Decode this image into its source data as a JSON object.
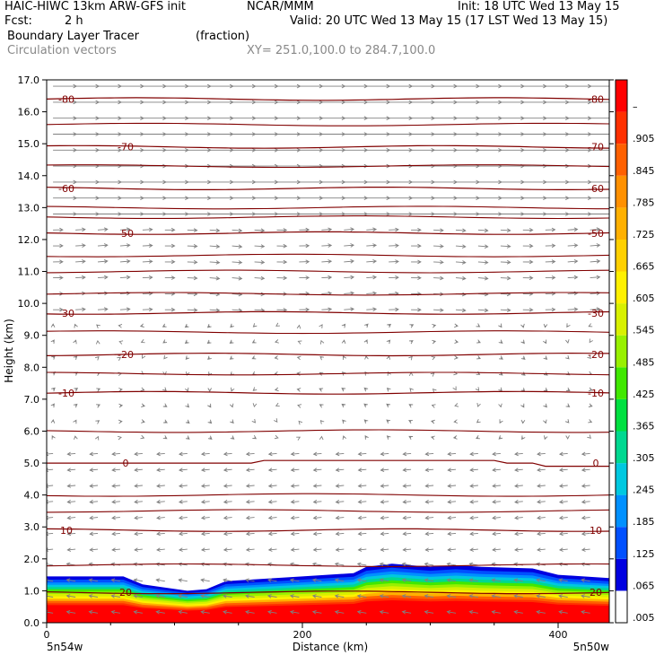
{
  "header": {
    "model": "HAIC-HIWC 13km ARW-GFS init",
    "org": "NCAR/MMM",
    "init": "Init: 18 UTC Wed 13 May 15",
    "fcst_label": "Fcst:",
    "fcst_value": "2 h",
    "valid": "Valid: 20 UTC Wed 13 May 15 (17 LST Wed 13 May 15)",
    "field": "Boundary Layer Tracer",
    "units": "(fraction)",
    "vectors": "Circulation vectors",
    "xy": "XY= 251.0,100.0 to 284.7,100.0"
  },
  "chart_data": {
    "type": "heatmap",
    "xlabel": "Distance (km)",
    "ylabel": "Height (km)",
    "xlim": [
      0,
      440
    ],
    "ylim": [
      0,
      17
    ],
    "x_ticks": [
      "0",
      "200",
      "400"
    ],
    "y_ticks": [
      "0.0",
      "1.0",
      "2.0",
      "3.0",
      "4.0",
      "5.0",
      "6.0",
      "7.0",
      "8.0",
      "9.0",
      "10.0",
      "11.0",
      "12.0",
      "13.0",
      "14.0",
      "15.0",
      "16.0",
      "17.0"
    ],
    "corner_left": "5n54w",
    "corner_right": "5n50w",
    "colorbar_labels": [
      ".005",
      ".065",
      ".125",
      ".185",
      ".245",
      ".305",
      ".365",
      ".425",
      ".485",
      ".545",
      ".605",
      ".665",
      ".725",
      ".785",
      ".845",
      ".905",
      "–"
    ],
    "colorbar_colors": [
      "#ffffff",
      "#0000e0",
      "#0050ff",
      "#0090ff",
      "#00c8e0",
      "#00d890",
      "#00e040",
      "#40e800",
      "#98f000",
      "#d8f000",
      "#fff000",
      "#ffd000",
      "#ffb000",
      "#ff9000",
      "#ff6000",
      "#ff3000",
      "#ff0000"
    ],
    "isotherms": [
      {
        "label": "-80",
        "y": 16.4
      },
      {
        "label": "-70",
        "y": 14.9
      },
      {
        "label": "-60",
        "y": 13.6
      },
      {
        "label": "-50",
        "y": 12.2
      },
      {
        "label": "-30",
        "y": 9.7
      },
      {
        "label": "-20",
        "y": 8.4
      },
      {
        "label": "-10",
        "y": 7.2
      },
      {
        "label": "0",
        "y": 5.0
      },
      {
        "label": "10",
        "y": 2.9
      },
      {
        "label": "20",
        "y": 0.95
      }
    ],
    "isotherm_color": "#800000",
    "vector_color": "#808080",
    "tracer_top_km": [
      [
        0,
        1.45
      ],
      [
        60,
        1.45
      ],
      [
        75,
        1.2
      ],
      [
        110,
        1.0
      ],
      [
        125,
        1.05
      ],
      [
        140,
        1.3
      ],
      [
        200,
        1.45
      ],
      [
        240,
        1.55
      ],
      [
        250,
        1.75
      ],
      [
        270,
        1.85
      ],
      [
        300,
        1.75
      ],
      [
        320,
        1.8
      ],
      [
        340,
        1.75
      ],
      [
        380,
        1.7
      ],
      [
        400,
        1.5
      ],
      [
        440,
        1.4
      ]
    ]
  }
}
